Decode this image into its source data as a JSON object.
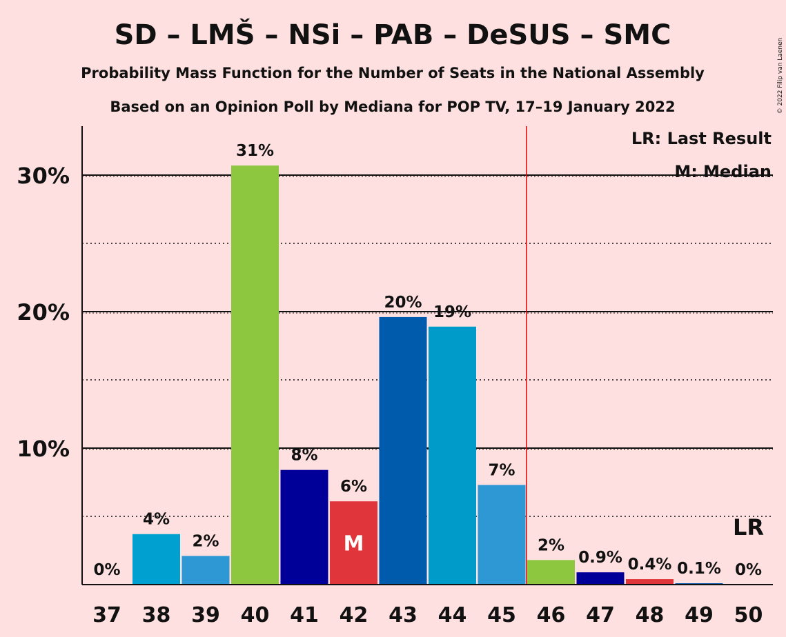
{
  "title": "SD – LMŠ – NSi – PAB – DeSUS – SMC",
  "subtitle1": "Probability Mass Function for the Number of Seats in the National Assembly",
  "subtitle2": "Based on an Opinion Poll by Mediana for POP TV, 17–19 January 2022",
  "copyright": "© 2022 Filip van Laenen",
  "legend": {
    "lr": "LR: Last Result",
    "median": "M: Median"
  },
  "markers": {
    "median_symbol": "M",
    "median_seat": 42,
    "last_result_symbol": "LR",
    "last_result_seat": 50,
    "majority_line_after_seat": 45,
    "majority_line_color": "#E00000"
  },
  "chart_data": {
    "type": "bar",
    "categories": [
      "37",
      "38",
      "39",
      "40",
      "41",
      "42",
      "43",
      "44",
      "45",
      "46",
      "47",
      "48",
      "49",
      "50"
    ],
    "values": [
      0,
      3.7,
      2.1,
      30.7,
      8.4,
      6.1,
      19.6,
      18.9,
      7.3,
      1.8,
      0.9,
      0.4,
      0.1,
      0
    ],
    "labels": [
      "0%",
      "4%",
      "2%",
      "31%",
      "8%",
      "6%",
      "20%",
      "19%",
      "7%",
      "2%",
      "0.9%",
      "0.4%",
      "0.1%",
      "0%"
    ],
    "colors": [
      "#00A0D0",
      "#00A0D0",
      "#2E98D4",
      "#8DC63F",
      "#000099",
      "#E0353A",
      "#005BAC",
      "#009BC8",
      "#2E98D4",
      "#8DC63F",
      "#000099",
      "#E0353A",
      "#005BAC",
      "#009BC8"
    ],
    "ylim": [
      0,
      33
    ],
    "yticks": [
      {
        "value": 10,
        "label": "10%"
      },
      {
        "value": 20,
        "label": "20%"
      },
      {
        "value": 30,
        "label": "30%"
      }
    ],
    "minor_gridlines": [
      5,
      15,
      25
    ],
    "ylabel": "",
    "xlabel": ""
  }
}
